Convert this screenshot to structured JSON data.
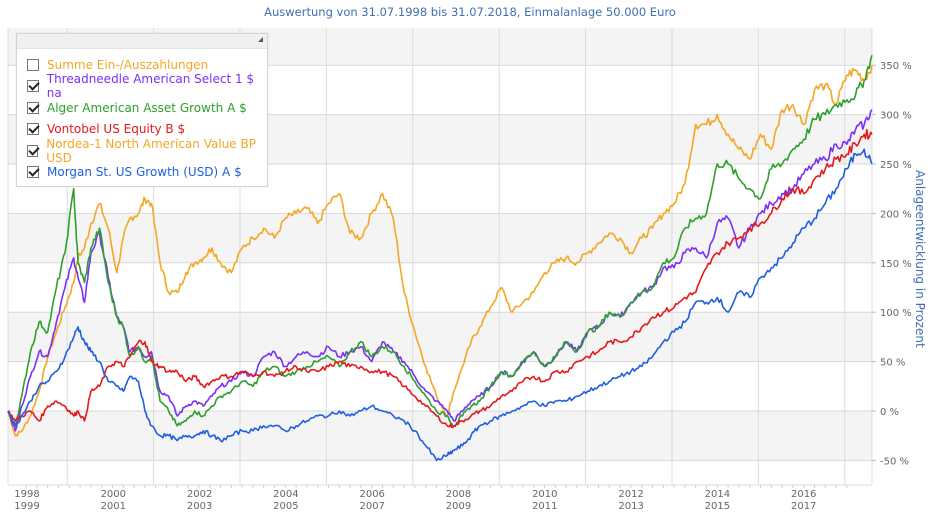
{
  "chart_data": {
    "type": "line",
    "title": "Auswertung von 31.07.1998 bis 31.07.2018, Einmalanlage 50.000 Euro",
    "xlabel": "",
    "ylabel": "Anlageentwicklung  in Prozent",
    "xlim": [
      1998.58,
      2018.58
    ],
    "ylim": [
      -60,
      365
    ],
    "y_ticks": [
      -50,
      0,
      50,
      100,
      150,
      200,
      250,
      300,
      350
    ],
    "y_tick_labels": [
      "-50 %",
      "0 %",
      "50 %",
      "100 %",
      "150 %",
      "200 %",
      "250 %",
      "300 %",
      "350 %"
    ],
    "x_tick_labels": [
      {
        "top": "1998",
        "bottom": "1999"
      },
      {
        "top": "2000",
        "bottom": "2001"
      },
      {
        "top": "2002",
        "bottom": "2003"
      },
      {
        "top": "2004",
        "bottom": "2005"
      },
      {
        "top": "2006",
        "bottom": "2007"
      },
      {
        "top": "2008",
        "bottom": "2009"
      },
      {
        "top": "2010",
        "bottom": "2011"
      },
      {
        "top": "2012",
        "bottom": "2013"
      },
      {
        "top": "2014",
        "bottom": "2015"
      },
      {
        "top": "2016",
        "bottom": "2017"
      }
    ],
    "grid": true,
    "legend_position": "top-left",
    "x": [
      1998.58,
      1998.75,
      1998.9,
      1999.1,
      1999.3,
      1999.5,
      1999.7,
      1999.9,
      2000.1,
      2000.2,
      2000.35,
      2000.5,
      2000.7,
      2000.9,
      2001.1,
      2001.25,
      2001.4,
      2001.6,
      2001.75,
      2001.9,
      2002.1,
      2002.3,
      2002.5,
      2002.7,
      2002.9,
      2003.1,
      2003.3,
      2003.5,
      2003.75,
      2004.0,
      2004.25,
      2004.5,
      2004.75,
      2005.0,
      2005.25,
      2005.5,
      2005.75,
      2006.0,
      2006.25,
      2006.5,
      2006.75,
      2007.0,
      2007.25,
      2007.5,
      2007.75,
      2008.0,
      2008.25,
      2008.5,
      2008.75,
      2008.9,
      2009.1,
      2009.3,
      2009.5,
      2009.75,
      2010.0,
      2010.25,
      2010.5,
      2010.75,
      2011.0,
      2011.25,
      2011.5,
      2011.75,
      2012.0,
      2012.25,
      2012.5,
      2012.75,
      2013.0,
      2013.25,
      2013.5,
      2013.75,
      2014.0,
      2014.25,
      2014.5,
      2014.75,
      2015.0,
      2015.25,
      2015.5,
      2015.75,
      2016.0,
      2016.25,
      2016.5,
      2016.75,
      2017.0,
      2017.25,
      2017.5,
      2017.75,
      2018.0,
      2018.2,
      2018.4,
      2018.58
    ],
    "series": [
      {
        "name": "Summe Ein-/Auszahlungen",
        "color": "#f5a623",
        "visible": false,
        "values": []
      },
      {
        "name": "Threadneedle American Select 1 $ na",
        "color": "#7b2ff7",
        "visible": true,
        "values": [
          0,
          -20,
          5,
          35,
          60,
          55,
          90,
          125,
          155,
          135,
          110,
          160,
          180,
          135,
          95,
          85,
          60,
          65,
          55,
          60,
          20,
          15,
          -5,
          5,
          10,
          5,
          15,
          25,
          30,
          40,
          35,
          55,
          60,
          45,
          55,
          60,
          55,
          65,
          55,
          60,
          65,
          50,
          70,
          60,
          50,
          35,
          20,
          10,
          0,
          -10,
          0,
          10,
          15,
          25,
          40,
          35,
          50,
          60,
          45,
          55,
          70,
          60,
          80,
          85,
          100,
          95,
          110,
          120,
          125,
          145,
          145,
          160,
          165,
          155,
          190,
          195,
          165,
          185,
          200,
          210,
          220,
          225,
          240,
          250,
          255,
          270,
          270,
          285,
          290,
          305
        ]
      },
      {
        "name": "Alger American Asset Growth A $",
        "color": "#2ca02c",
        "visible": true,
        "values": [
          0,
          -15,
          15,
          60,
          90,
          80,
          125,
          160,
          225,
          150,
          130,
          165,
          185,
          130,
          95,
          85,
          55,
          65,
          50,
          55,
          10,
          0,
          -15,
          -10,
          0,
          -5,
          5,
          15,
          20,
          30,
          25,
          40,
          45,
          35,
          40,
          45,
          50,
          55,
          45,
          60,
          70,
          55,
          65,
          60,
          45,
          30,
          15,
          0,
          -5,
          -15,
          -5,
          5,
          10,
          25,
          40,
          35,
          50,
          60,
          45,
          55,
          70,
          60,
          80,
          85,
          100,
          95,
          110,
          120,
          125,
          150,
          155,
          185,
          195,
          200,
          250,
          250,
          235,
          225,
          215,
          245,
          250,
          265,
          275,
          295,
          300,
          310,
          315,
          320,
          335,
          360
        ]
      },
      {
        "name": "Vontobel US Equity B $",
        "color": "#e31a1c",
        "visible": true,
        "values": [
          0,
          -10,
          -5,
          0,
          -10,
          5,
          10,
          5,
          -5,
          0,
          -10,
          20,
          25,
          45,
          50,
          45,
          55,
          70,
          70,
          50,
          45,
          40,
          40,
          30,
          35,
          25,
          30,
          35,
          35,
          40,
          35,
          40,
          35,
          40,
          45,
          40,
          40,
          45,
          50,
          45,
          45,
          40,
          40,
          35,
          25,
          15,
          5,
          -5,
          -15,
          -15,
          -10,
          -5,
          0,
          5,
          15,
          20,
          30,
          35,
          30,
          40,
          40,
          50,
          55,
          60,
          70,
          70,
          75,
          85,
          95,
          100,
          105,
          115,
          120,
          145,
          160,
          170,
          175,
          185,
          190,
          200,
          215,
          225,
          220,
          235,
          245,
          255,
          260,
          270,
          280,
          280
        ]
      },
      {
        "name": "Nordea-1 North American Value BP USD",
        "color": "#f5a623",
        "visible": true,
        "values": [
          0,
          -25,
          -20,
          -5,
          20,
          55,
          80,
          105,
          130,
          155,
          165,
          190,
          210,
          185,
          140,
          175,
          195,
          200,
          215,
          210,
          150,
          120,
          120,
          140,
          150,
          155,
          165,
          150,
          140,
          165,
          175,
          185,
          175,
          195,
          200,
          205,
          190,
          210,
          220,
          180,
          175,
          200,
          220,
          195,
          120,
          80,
          45,
          15,
          -5,
          20,
          45,
          70,
          85,
          105,
          125,
          100,
          110,
          120,
          140,
          150,
          155,
          150,
          160,
          170,
          180,
          175,
          160,
          175,
          185,
          200,
          210,
          230,
          290,
          290,
          300,
          280,
          265,
          255,
          280,
          265,
          305,
          310,
          290,
          325,
          330,
          310,
          340,
          345,
          335,
          350
        ]
      },
      {
        "name": "Morgan St. US Growth (USD) A $",
        "color": "#1f5fe0",
        "visible": true,
        "values": [
          0,
          -15,
          -5,
          10,
          25,
          30,
          40,
          55,
          75,
          85,
          70,
          60,
          50,
          30,
          25,
          20,
          35,
          30,
          0,
          -15,
          -25,
          -25,
          -30,
          -25,
          -25,
          -20,
          -25,
          -30,
          -25,
          -20,
          -20,
          -15,
          -15,
          -20,
          -15,
          -10,
          -5,
          -5,
          0,
          -5,
          0,
          5,
          0,
          -5,
          -10,
          -20,
          -35,
          -50,
          -45,
          -40,
          -35,
          -25,
          -15,
          -10,
          -5,
          0,
          5,
          10,
          5,
          10,
          10,
          15,
          20,
          25,
          30,
          35,
          40,
          45,
          55,
          70,
          80,
          90,
          110,
          110,
          115,
          100,
          120,
          115,
          135,
          145,
          155,
          170,
          185,
          195,
          210,
          225,
          245,
          260,
          265,
          250
        ]
      }
    ]
  }
}
